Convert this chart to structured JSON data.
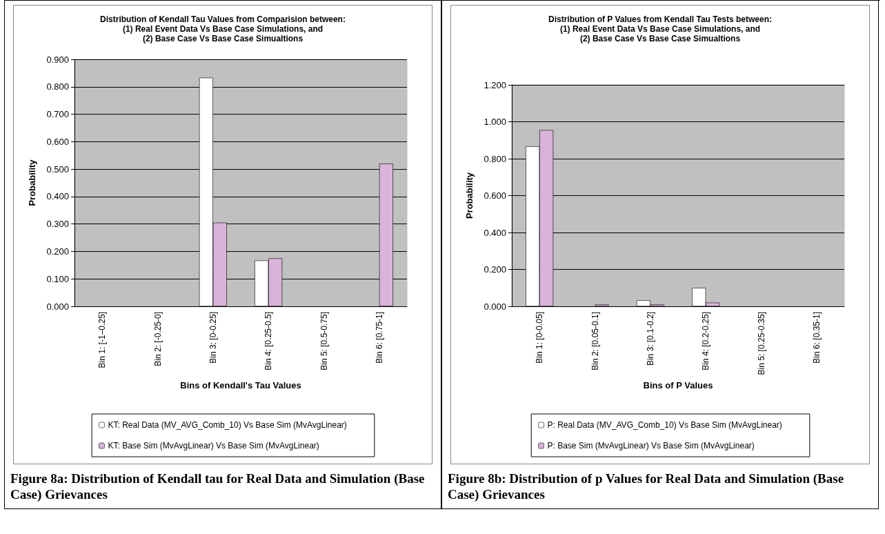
{
  "chart_data": [
    {
      "type": "bar",
      "title": "Distribution of Kendall Tau Values from Comparision between:\n(1) Real Event Data Vs Base Case Simulations, and\n(2) Base Case Vs Base Case Simualtions",
      "xlabel": "Bins of Kendall's Tau Values",
      "ylabel": "Probability",
      "categories": [
        "Bin 1: [-1–0.25]",
        "Bin 2: [-0.25-0]",
        "Bin 3: [0-0.25]",
        "Bin 4: [0.25-0.5]",
        "Bin 5: [0.5-0.75]",
        "Bin 6: [0.75-1]"
      ],
      "series": [
        {
          "name": "KT: Real Data (MV_AVG_Comb_10) Vs Base Sim (MvAvgLinear)",
          "color": "#ffffff",
          "values": [
            0,
            0,
            0.833,
            0.167,
            0,
            0
          ]
        },
        {
          "name": "KT: Base Sim (MvAvgLinear) Vs Base Sim (MvAvgLinear)",
          "color": "#d9b3d9",
          "values": [
            0,
            0,
            0.305,
            0.175,
            0,
            0.52
          ]
        }
      ],
      "ylim": [
        0,
        0.9
      ],
      "yticks": [
        {
          "value": 0,
          "label": "0.000"
        },
        {
          "value": 0.1,
          "label": "0.100"
        },
        {
          "value": 0.2,
          "label": "0.200"
        },
        {
          "value": 0.3,
          "label": "0.300"
        },
        {
          "value": 0.4,
          "label": "0.400"
        },
        {
          "value": 0.5,
          "label": "0.500"
        },
        {
          "value": 0.6,
          "label": "0.600"
        },
        {
          "value": 0.7,
          "label": "0.700"
        },
        {
          "value": 0.8,
          "label": "0.800"
        },
        {
          "value": 0.9,
          "label": "0.900"
        }
      ],
      "grid": "y",
      "legend": "bottom",
      "annotations": [
        "Figure 8a: Distribution of Kendall tau for Real Data and Simulation (Base Case) Grievances"
      ]
    },
    {
      "type": "bar",
      "title": "Distribution of P Values from Kendall Tau Tests between:\n(1) Real Event Data Vs Base Case Simulations, and\n(2) Base Case Vs Base Case Simualtions",
      "xlabel": "Bins of P Values",
      "ylabel": "Probability",
      "categories": [
        "Bin 1: [0-0.05]",
        "Bin 2: [0.05-0.1]",
        "Bin 3: [0.1-0.2]",
        "Bin 4: [0.2-0.25]",
        "Bin 5: [0.25-0.35]",
        "Bin 6: [0.35-1]"
      ],
      "series": [
        {
          "name": "P: Real Data (MV_AVG_Comb_10) Vs Base Sim (MvAvgLinear)",
          "color": "#ffffff",
          "values": [
            0.867,
            0,
            0.033,
            0.1,
            0,
            0
          ]
        },
        {
          "name": "P: Base Sim (MvAvgLinear) Vs Base Sim (MvAvgLinear)",
          "color": "#d9b3d9",
          "values": [
            0.955,
            0.01,
            0.01,
            0.02,
            0,
            0
          ]
        }
      ],
      "ylim": [
        0,
        1.2
      ],
      "yticks": [
        {
          "value": 0,
          "label": "0.000"
        },
        {
          "value": 0.2,
          "label": "0.200"
        },
        {
          "value": 0.4,
          "label": "0.400"
        },
        {
          "value": 0.6,
          "label": "0.600"
        },
        {
          "value": 0.8,
          "label": "0.800"
        },
        {
          "value": 1,
          "label": "1.000"
        },
        {
          "value": 1.2,
          "label": "1.200"
        }
      ],
      "grid": "y",
      "legend": "bottom",
      "annotations": [
        "Figure 8b: Distribution of p Values for Real Data and Simulation (Base Case) Grievances"
      ]
    }
  ]
}
